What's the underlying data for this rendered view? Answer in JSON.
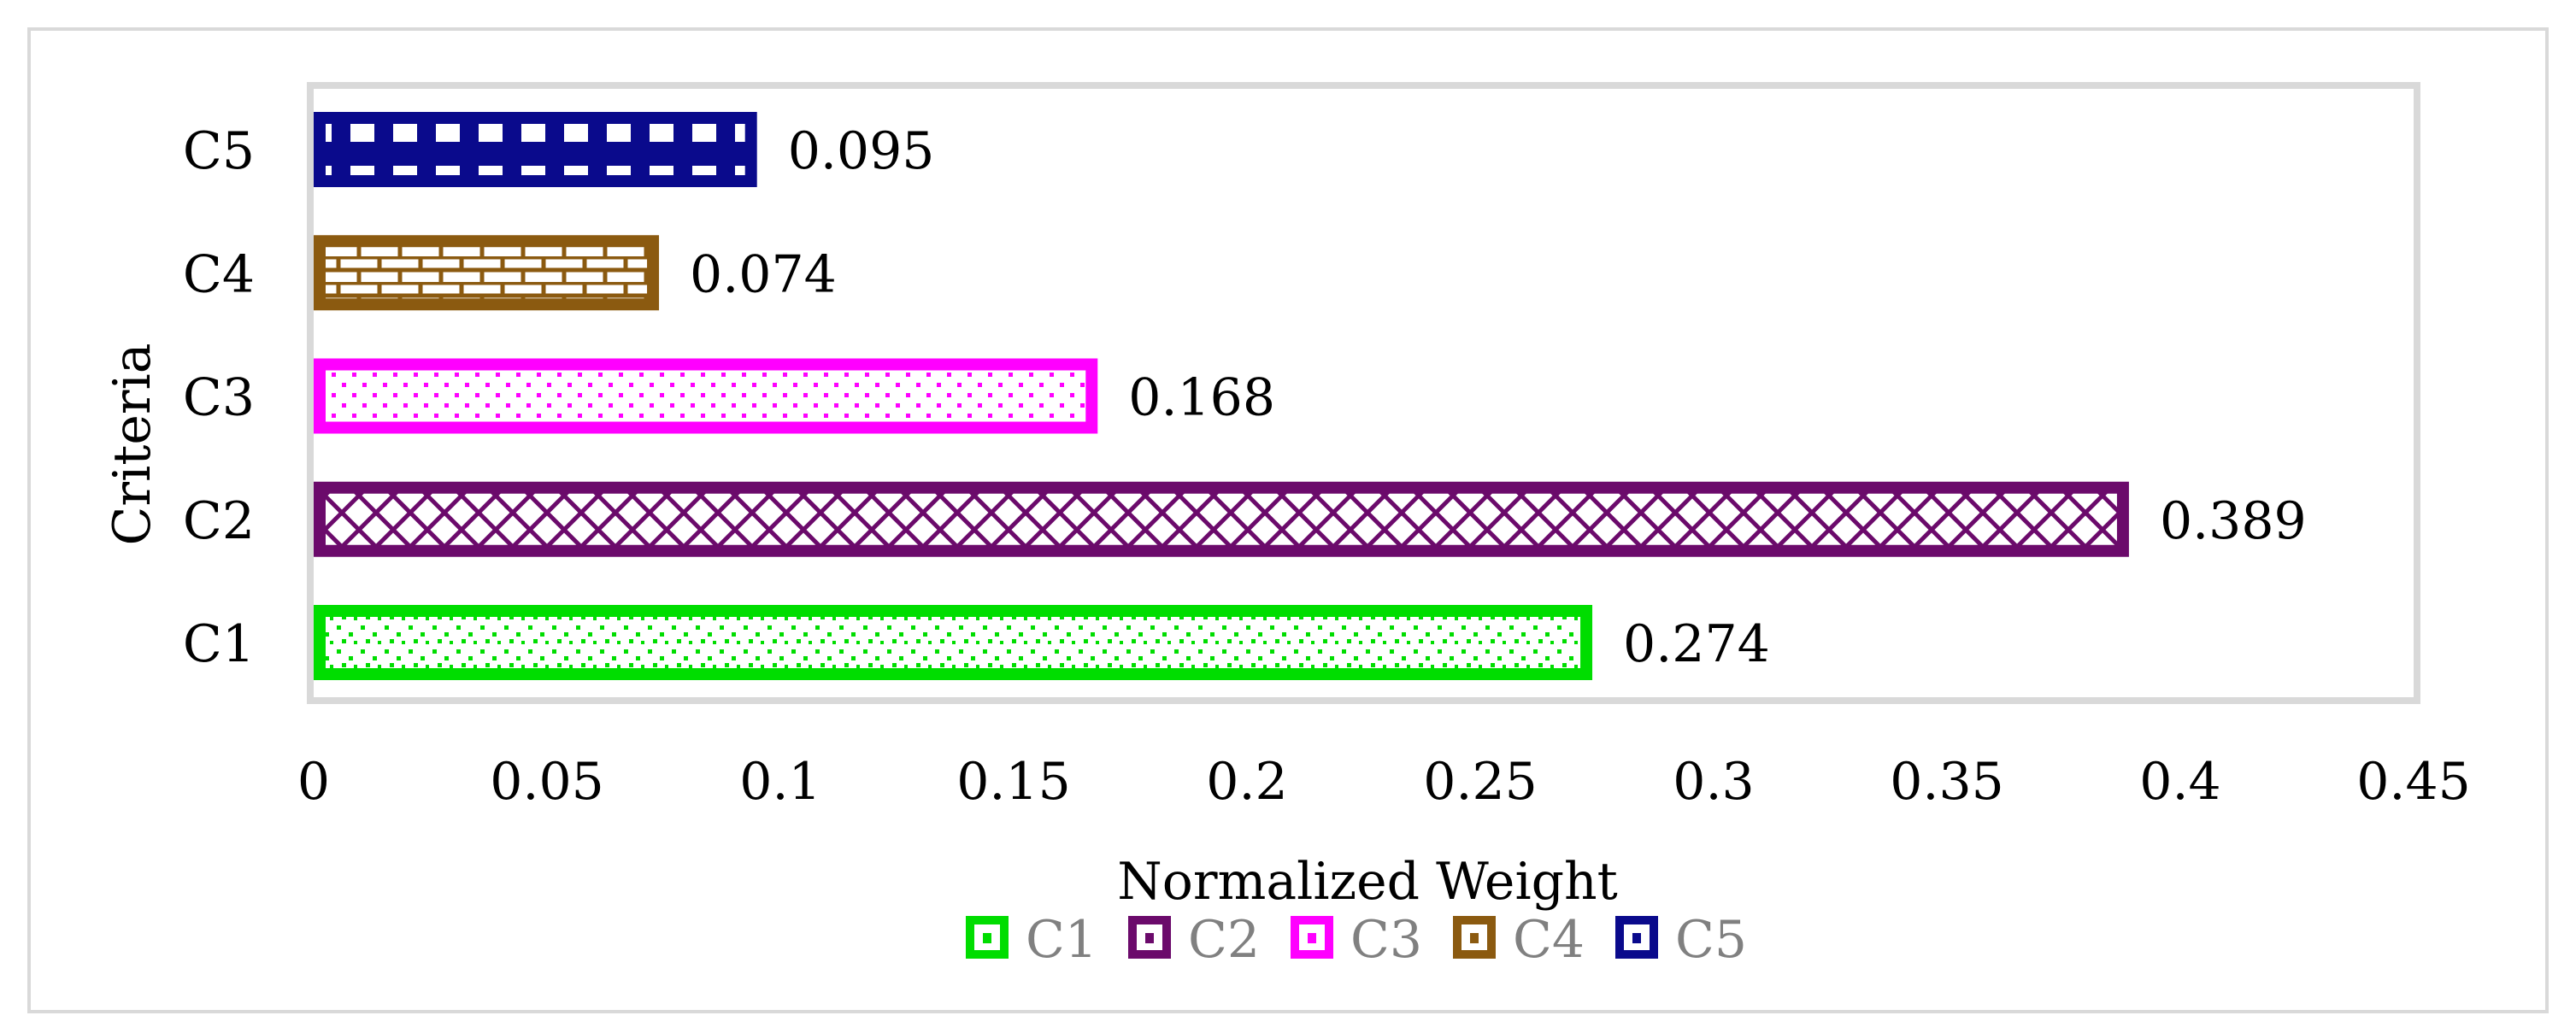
{
  "chart_data": {
    "type": "bar",
    "orientation": "horizontal",
    "categories": [
      "C1",
      "C2",
      "C3",
      "C4",
      "C5"
    ],
    "values": [
      0.274,
      0.389,
      0.168,
      0.074,
      0.095
    ],
    "data_labels": [
      "0.274",
      "0.389",
      "0.168",
      "0.074",
      "0.095"
    ],
    "xlabel": "Normalized Weight",
    "ylabel": "Criteria",
    "xlim": [
      0,
      0.45
    ],
    "x_ticks": [
      "0",
      "0.05",
      "0.1",
      "0.15",
      "0.2",
      "0.25",
      "0.3",
      "0.35",
      "0.4",
      "0.45"
    ],
    "grid": false,
    "legend_position": "bottom",
    "legend": [
      {
        "label": "C1",
        "color": "#00dd00"
      },
      {
        "label": "C2",
        "color": "#6b0a6b"
      },
      {
        "label": "C3",
        "color": "#ff00ff"
      },
      {
        "label": "C4",
        "color": "#8b5a10"
      },
      {
        "label": "C5",
        "color": "#0a0a8c"
      }
    ],
    "colors": {
      "C1": "#00dd00",
      "C2": "#6b0a6b",
      "C3": "#ff00ff",
      "C4": "#8b5a10",
      "C5": "#0a0a8c"
    }
  }
}
